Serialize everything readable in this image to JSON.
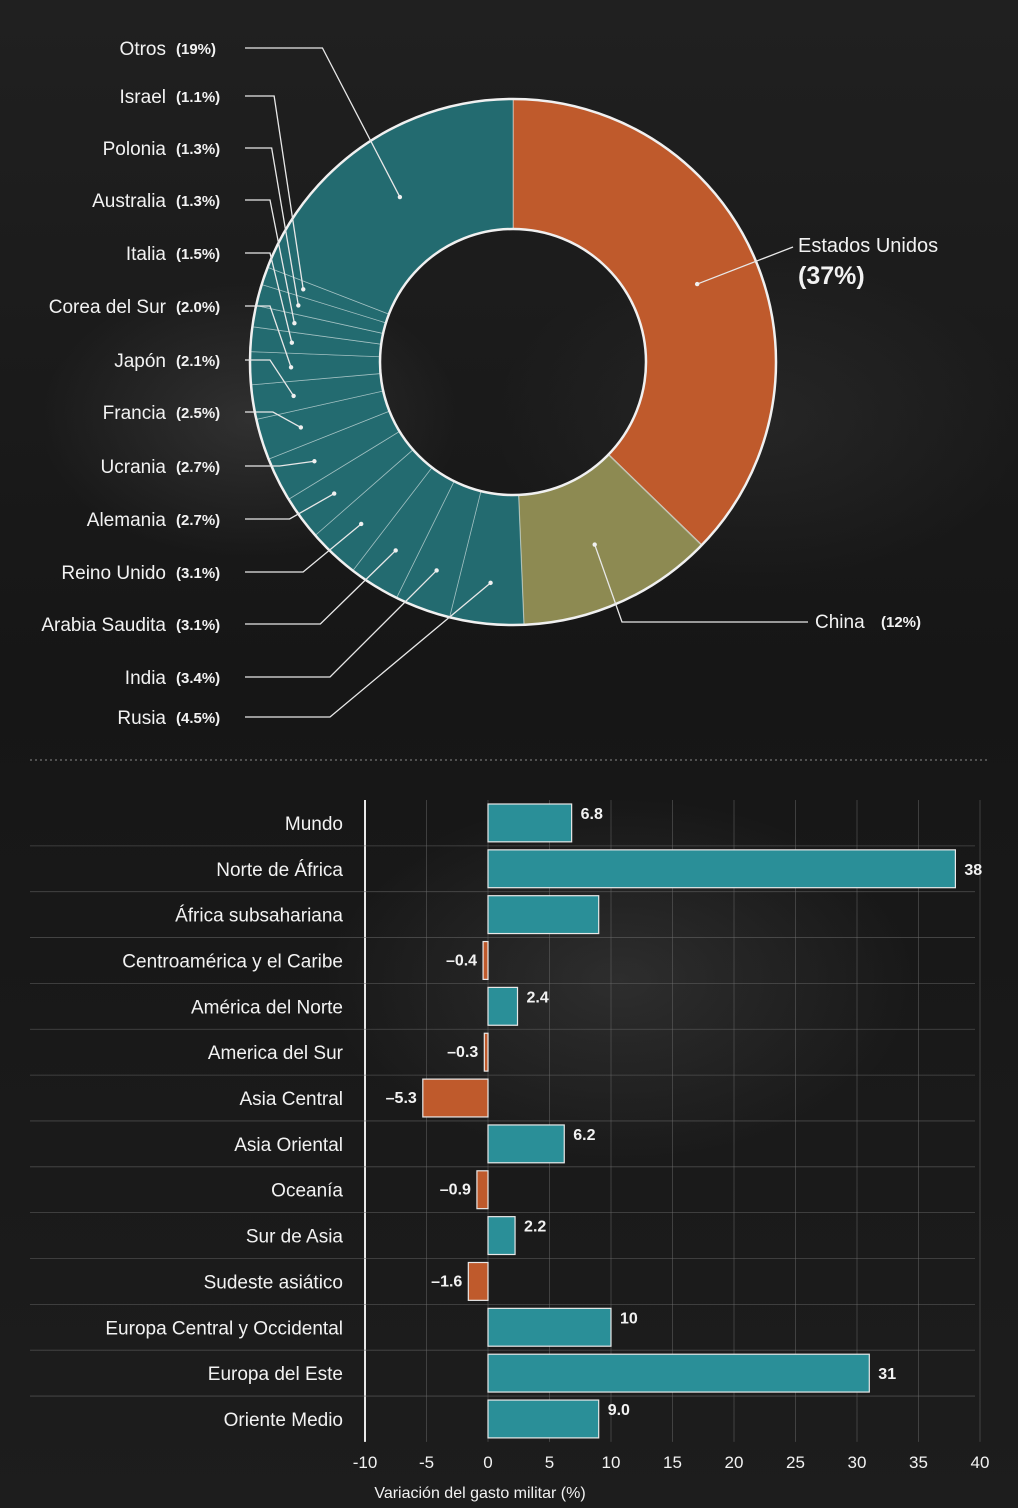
{
  "colors": {
    "teal": "#236b70",
    "teal_bar": "#2a8f98",
    "orange": "#bf5a2c",
    "olive": "#8d8a52",
    "text": "#f2f2f2",
    "grid": "#6a6a6a",
    "background": "#1b1b1b"
  },
  "chart_data": [
    {
      "type": "pie",
      "subtype": "donut",
      "slices": [
        {
          "label": "Estados Unidos",
          "pct_label": "(37%)",
          "value": 37
        },
        {
          "label": "China",
          "pct_label": "(12%)",
          "value": 12
        },
        {
          "label": "Rusia",
          "pct_label": "(4.5%)",
          "value": 4.5
        },
        {
          "label": "India",
          "pct_label": "(3.4%)",
          "value": 3.4
        },
        {
          "label": "Arabia Saudita",
          "pct_label": "(3.1%)",
          "value": 3.1
        },
        {
          "label": "Reino Unido",
          "pct_label": "(3.1%)",
          "value": 3.1
        },
        {
          "label": "Alemania",
          "pct_label": "(2.7%)",
          "value": 2.7
        },
        {
          "label": "Ucrania",
          "pct_label": "(2.7%)",
          "value": 2.7
        },
        {
          "label": "Francia",
          "pct_label": "(2.5%)",
          "value": 2.5
        },
        {
          "label": "Japón",
          "pct_label": "(2.1%)",
          "value": 2.1
        },
        {
          "label": "Corea del Sur",
          "pct_label": "(2.0%)",
          "value": 2.0
        },
        {
          "label": "Italia",
          "pct_label": "(1.5%)",
          "value": 1.5
        },
        {
          "label": "Australia",
          "pct_label": "(1.3%)",
          "value": 1.3
        },
        {
          "label": "Polonia",
          "pct_label": "(1.3%)",
          "value": 1.3
        },
        {
          "label": "Israel",
          "pct_label": "(1.1%)",
          "value": 1.1
        },
        {
          "label": "Otros",
          "pct_label": "(19%)",
          "value": 19
        }
      ]
    },
    {
      "type": "bar",
      "orientation": "horizontal",
      "categories": [
        "Mundo",
        "Norte de África",
        "África subsahariana",
        "Centroamérica y el Caribe",
        "América del Norte",
        "America del Sur",
        "Asia Central",
        "Asia Oriental",
        "Oceanía",
        "Sur de Asia",
        "Sudeste asiático",
        "Europa Central y Occidental",
        "Europa del Este",
        "Oriente Medio"
      ],
      "values": [
        6.8,
        38,
        9.0,
        -0.4,
        2.4,
        -0.3,
        -5.3,
        6.2,
        -0.9,
        2.2,
        -1.6,
        10,
        31,
        9.0
      ],
      "value_labels": [
        "6.8",
        "38",
        "",
        "–0.4",
        "2.4",
        "–0.3",
        "–5.3",
        "6.2",
        "–0.9",
        "2.2",
        "–1.6",
        "10",
        "31",
        "9.0"
      ],
      "xlabel": "Variación del gasto militar (%)",
      "xlim": [
        -10,
        40
      ],
      "xticks": [
        "-10",
        "-5",
        "0",
        "5",
        "10",
        "15",
        "20",
        "25",
        "30",
        "35",
        "40"
      ],
      "grid": true
    }
  ]
}
